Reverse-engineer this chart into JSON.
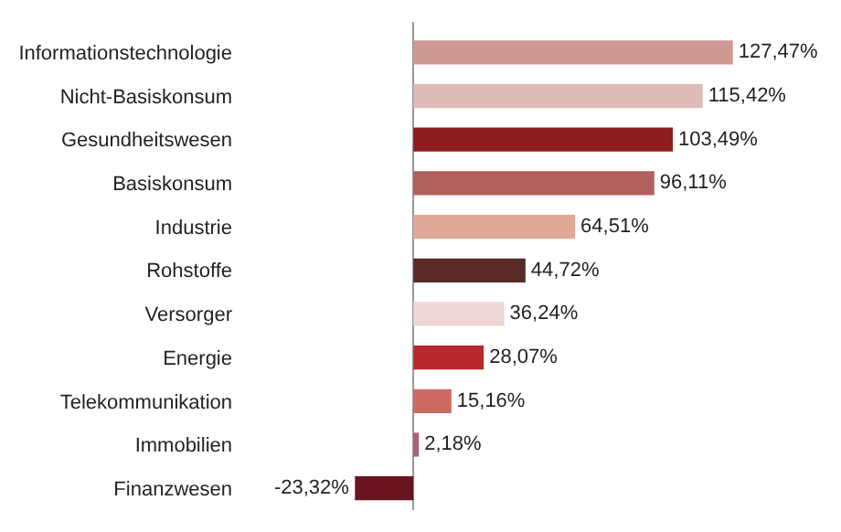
{
  "chart_data": {
    "type": "bar",
    "orientation": "horizontal",
    "categories": [
      "Informationstechnologie",
      "Nicht-Basiskonsum",
      "Gesundheitswesen",
      "Basiskonsum",
      "Industrie",
      "Rohstoffe",
      "Versorger",
      "Energie",
      "Telekommunikation",
      "Immobilien",
      "Finanzwesen"
    ],
    "values": [
      127.47,
      115.42,
      103.49,
      96.11,
      64.51,
      44.72,
      36.24,
      28.07,
      15.16,
      2.18,
      -23.32
    ],
    "value_labels": [
      "127,47%",
      "115,42%",
      "103,49%",
      "96,11%",
      "64,51%",
      "44,72%",
      "36,24%",
      "28,07%",
      "15,16%",
      "2,18%",
      "-23,32%"
    ],
    "colors": [
      "#d09a94",
      "#dfbab6",
      "#8c1c1e",
      "#b05f5c",
      "#e2a898",
      "#5a2a28",
      "#eed8d6",
      "#b8282c",
      "#cc6a62",
      "#a8607e",
      "#6a1420"
    ],
    "legend": false
  }
}
